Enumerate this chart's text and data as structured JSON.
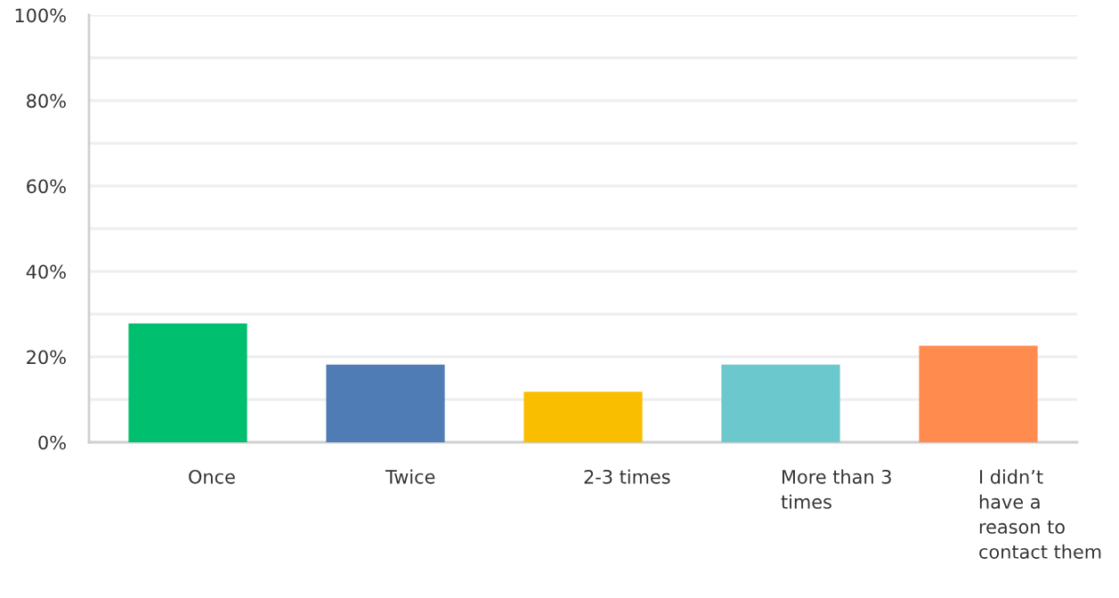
{
  "chart_data": {
    "type": "bar",
    "categories": [
      "Once",
      "Twice",
      "2-3 times",
      "More than 3 times",
      "I didn’t have a reason to contact them"
    ],
    "values": [
      27.8,
      18.2,
      11.8,
      18.2,
      22.6
    ],
    "colors": [
      "#00bf6f",
      "#507cb6",
      "#f9be00",
      "#6bc8cd",
      "#ff8b4f"
    ],
    "ylim": [
      0,
      100
    ],
    "yticks": [
      {
        "value": 0,
        "label": "0%"
      },
      {
        "value": 10,
        "label": null
      },
      {
        "value": 20,
        "label": "20%"
      },
      {
        "value": 30,
        "label": null
      },
      {
        "value": 40,
        "label": "40%"
      },
      {
        "value": 50,
        "label": null
      },
      {
        "value": 60,
        "label": "60%"
      },
      {
        "value": 70,
        "label": null
      },
      {
        "value": 80,
        "label": "80%"
      },
      {
        "value": 90,
        "label": null
      },
      {
        "value": 100,
        "label": "100%"
      }
    ],
    "grid": "y"
  }
}
